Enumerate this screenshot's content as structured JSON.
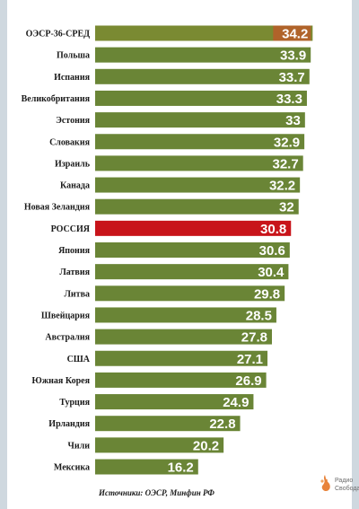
{
  "chart_data": {
    "type": "bar",
    "orientation": "horizontal",
    "categories": [
      "ОЭСР-36-СРЕД",
      "Польша",
      "Испания",
      "Великобритания",
      "Эстония",
      "Словакия",
      "Израиль",
      "Канада",
      "Новая Зеландия",
      "РОССИЯ",
      "Япония",
      "Латвия",
      "Литва",
      "Швейцария",
      "Австралия",
      "США",
      "Южная Корея",
      "Турция",
      "Ирландия",
      "Чили",
      "Мексика"
    ],
    "values": [
      34.2,
      33.9,
      33.7,
      33.3,
      33,
      32.9,
      32.7,
      32.2,
      32,
      30.8,
      30.6,
      30.4,
      29.8,
      28.5,
      27.8,
      27.1,
      26.9,
      24.9,
      22.8,
      20.2,
      16.2
    ],
    "value_labels": [
      "34.2",
      "33.9",
      "33.7",
      "33.3",
      "33",
      "32.9",
      "32.7",
      "32.2",
      "32",
      "30.8",
      "30.6",
      "30.4",
      "29.8",
      "28.5",
      "27.8",
      "27.1",
      "26.9",
      "24.9",
      "22.8",
      "20.2",
      "16.2"
    ],
    "highlights": {
      "ОЭСР-36-СРЕД": "#7a8a32",
      "РОССИЯ": "#c8141a"
    },
    "colors": {
      "bar": "#6a8536",
      "bar_oecd": "#7a8a32",
      "bar_oecd_value_bg": "#b0632a",
      "bar_russia": "#c8141a",
      "value_text": "#ffffff"
    },
    "title": "",
    "xlabel": "",
    "ylabel": "",
    "xlim": [
      0,
      35
    ],
    "grid": false,
    "legend": "none"
  },
  "source": "Источники: ОЭСР, Минфин РФ",
  "logo": {
    "line1": "Радио",
    "line2": "Свобода",
    "icon": "radio-svoboda-flame-icon"
  }
}
